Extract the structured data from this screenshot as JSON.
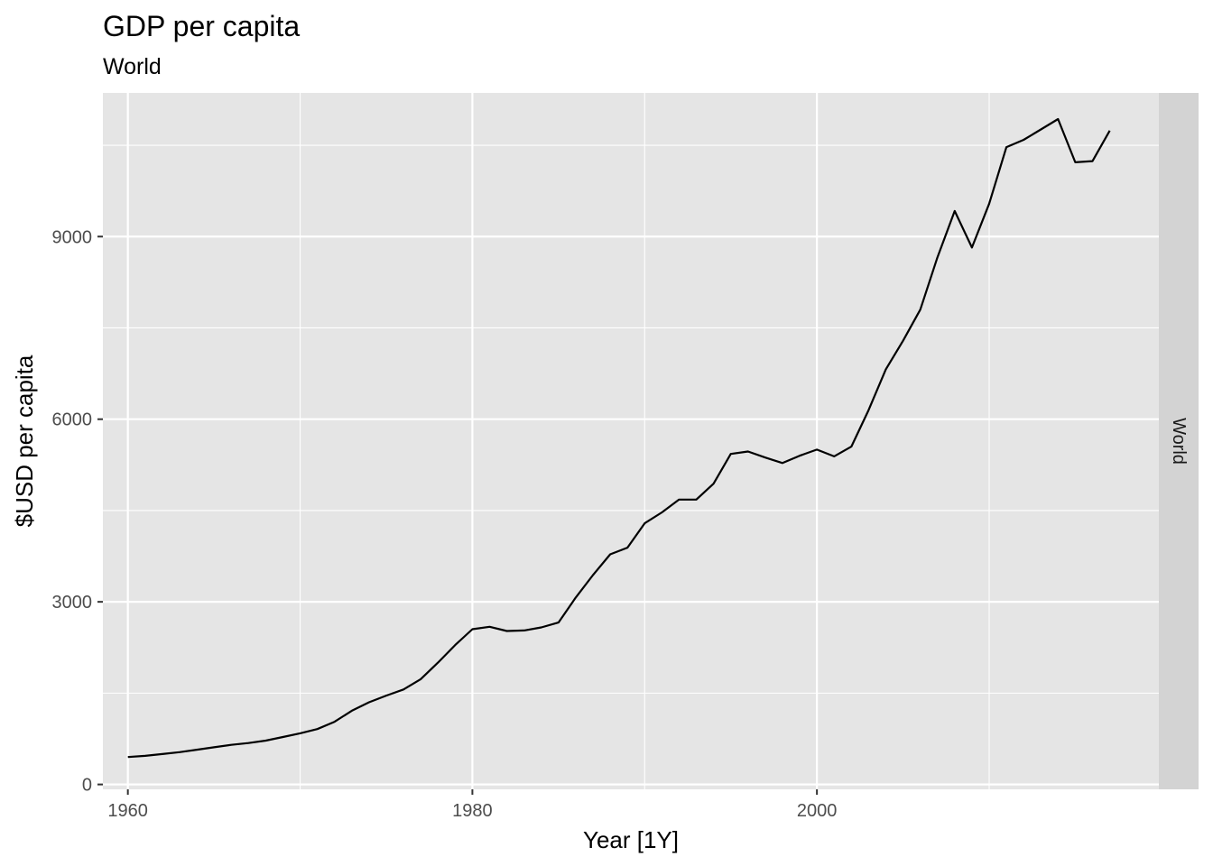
{
  "chart_data": {
    "type": "line",
    "title": "GDP per capita",
    "subtitle": "World",
    "xlabel": "Year [1Y]",
    "ylabel": "$USD per capita",
    "facet_label": "World",
    "xlim": [
      1958.55,
      2019.85
    ],
    "ylim": [
      -80,
      11360
    ],
    "x_ticks": [
      1960,
      1980,
      2000
    ],
    "x_minor_ticks": [
      1970,
      1990,
      2010
    ],
    "y_ticks": [
      0,
      3000,
      6000,
      9000
    ],
    "y_minor_ticks": [
      1500,
      4500,
      7500,
      10500
    ],
    "grid": true,
    "colors": {
      "panel_bg": "#e5e5e5",
      "grid": "#ffffff",
      "strip_bg": "#d3d3d3",
      "line": "#000000"
    },
    "series": [
      {
        "x": [
          1960,
          1961,
          1962,
          1963,
          1964,
          1965,
          1966,
          1967,
          1968,
          1969,
          1970,
          1971,
          1972,
          1973,
          1974,
          1975,
          1976,
          1977,
          1978,
          1979,
          1980,
          1981,
          1982,
          1983,
          1984,
          1985,
          1986,
          1987,
          1988,
          1989,
          1990,
          1991,
          1992,
          1993,
          1994,
          1995,
          1996,
          1997,
          1998,
          1999,
          2000,
          2001,
          2002,
          2003,
          2004,
          2005,
          2006,
          2007,
          2008,
          2009,
          2010,
          2011,
          2012,
          2013,
          2014,
          2015,
          2016,
          2017
        ],
        "values": [
          450,
          470,
          500,
          530,
          570,
          610,
          650,
          680,
          720,
          780,
          840,
          910,
          1030,
          1210,
          1350,
          1460,
          1560,
          1730,
          2000,
          2290,
          2550,
          2590,
          2520,
          2530,
          2580,
          2660,
          3070,
          3440,
          3780,
          3890,
          4290,
          4470,
          4680,
          4680,
          4940,
          5430,
          5470,
          5370,
          5280,
          5400,
          5500,
          5390,
          5550,
          6150,
          6820,
          7290,
          7800,
          8660,
          9420,
          8820,
          9540,
          10470,
          10590,
          10760,
          10930,
          10220,
          10240,
          10740
        ]
      }
    ]
  }
}
